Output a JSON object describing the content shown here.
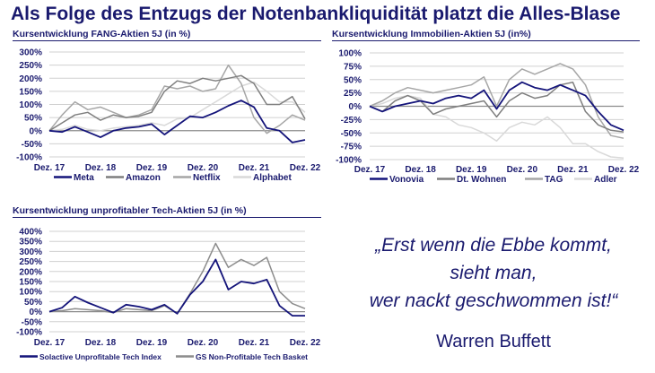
{
  "title": "Als Folge des Entzugs der Notenbankliquidität platzt die Alles-Blase",
  "quote": {
    "lines": [
      "„Erst wenn die Ebbe kommt,",
      "sieht man,",
      "wer nackt geschwommen ist!“"
    ],
    "author": "Warren Buffett"
  },
  "chart_data": [
    {
      "type": "line",
      "title": "Kursentwicklung FANG-Aktien 5J (in %)",
      "x": [
        0,
        0.25,
        0.5,
        0.75,
        1,
        1.25,
        1.5,
        1.75,
        2,
        2.25,
        2.5,
        2.75,
        3,
        3.25,
        3.5,
        3.75,
        4,
        4.25,
        4.5,
        4.75,
        5
      ],
      "xticks": [
        "Dez. 17",
        "Dez. 18",
        "Dez. 19",
        "Dez. 20",
        "Dez. 21",
        "Dez. 22"
      ],
      "yticks": [
        "300%",
        "250%",
        "200%",
        "150%",
        "100%",
        "50%",
        "0%",
        "-50%",
        "-100%"
      ],
      "ylim": [
        -100,
        300
      ],
      "grid": true,
      "legend": "bottom",
      "series": [
        {
          "name": "Meta",
          "color": "#14147a",
          "values": [
            0,
            -5,
            15,
            -5,
            -25,
            0,
            10,
            15,
            25,
            -15,
            20,
            55,
            50,
            70,
            95,
            115,
            90,
            10,
            0,
            -45,
            -35
          ]
        },
        {
          "name": "Amazon",
          "color": "#7f7f7f",
          "values": [
            0,
            30,
            60,
            70,
            40,
            60,
            50,
            55,
            70,
            150,
            190,
            180,
            200,
            190,
            200,
            210,
            180,
            100,
            100,
            130,
            45
          ]
        },
        {
          "name": "Netflix",
          "color": "#a6a6a6",
          "values": [
            0,
            60,
            110,
            80,
            90,
            70,
            50,
            60,
            80,
            170,
            160,
            170,
            150,
            160,
            250,
            180,
            50,
            -10,
            20,
            60,
            40
          ]
        },
        {
          "name": "Alphabet",
          "color": "#d9d9d9",
          "values": [
            0,
            5,
            20,
            5,
            0,
            10,
            15,
            20,
            30,
            20,
            45,
            50,
            80,
            110,
            140,
            170,
            185,
            150,
            110,
            110,
            70
          ]
        }
      ]
    },
    {
      "type": "line",
      "title": "Kursentwicklung Immobilien-Aktien 5J (in%)",
      "x": [
        0,
        0.25,
        0.5,
        0.75,
        1,
        1.25,
        1.5,
        1.75,
        2,
        2.25,
        2.5,
        2.75,
        3,
        3.25,
        3.5,
        3.75,
        4,
        4.25,
        4.5,
        4.75,
        5
      ],
      "xticks": [
        "Dez. 17",
        "Dez. 18",
        "Dez. 19",
        "Dez. 20",
        "Dez. 21",
        "Dez. 22"
      ],
      "yticks": [
        "100%",
        "75%",
        "50%",
        "25%",
        "0%",
        "-25%",
        "-50%",
        "-75%",
        "-100%"
      ],
      "ylim": [
        -100,
        100
      ],
      "grid": true,
      "legend": "bottom",
      "series": [
        {
          "name": "Vonovia",
          "color": "#14147a",
          "values": [
            0,
            -10,
            0,
            5,
            10,
            5,
            15,
            20,
            15,
            30,
            -5,
            30,
            45,
            35,
            30,
            40,
            30,
            20,
            -10,
            -35,
            -45
          ]
        },
        {
          "name": "Dt. Wohnen",
          "color": "#7f7f7f",
          "values": [
            0,
            -10,
            10,
            20,
            10,
            -15,
            -5,
            0,
            5,
            10,
            -20,
            10,
            25,
            15,
            20,
            40,
            45,
            -10,
            -35,
            -45,
            -48
          ]
        },
        {
          "name": "TAG",
          "color": "#a6a6a6",
          "values": [
            0,
            10,
            25,
            35,
            30,
            25,
            30,
            35,
            40,
            55,
            0,
            50,
            70,
            60,
            70,
            80,
            70,
            40,
            -20,
            -55,
            -60
          ]
        },
        {
          "name": "Adler",
          "color": "#d9d9d9",
          "values": [
            0,
            5,
            15,
            20,
            15,
            -15,
            -20,
            -35,
            -40,
            -50,
            -65,
            -40,
            -30,
            -35,
            -20,
            -40,
            -70,
            -70,
            -85,
            -95,
            -97
          ]
        }
      ]
    },
    {
      "type": "line",
      "title": "Kursentwicklung unprofitabler Tech-Aktien 5J (in %)",
      "x": [
        0,
        0.25,
        0.5,
        0.75,
        1,
        1.25,
        1.5,
        1.75,
        2,
        2.25,
        2.5,
        2.75,
        3,
        3.25,
        3.5,
        3.75,
        4,
        4.25,
        4.5,
        4.75,
        5
      ],
      "xticks": [
        "Dez. 17",
        "Dez. 18",
        "Dez. 19",
        "Dez. 20",
        "Dez. 21",
        "Dez. 22"
      ],
      "yticks": [
        "400%",
        "350%",
        "300%",
        "250%",
        "200%",
        "150%",
        "100%",
        "50%",
        "0%",
        "-50%",
        "-100%"
      ],
      "ylim": [
        -100,
        400
      ],
      "grid": true,
      "legend": "bottom",
      "series": [
        {
          "name": "Solactive Unprofitable Tech Index",
          "color": "#14147a",
          "values": [
            0,
            20,
            75,
            45,
            20,
            -5,
            35,
            25,
            10,
            35,
            -10,
            85,
            150,
            260,
            110,
            150,
            140,
            160,
            30,
            -20,
            -20
          ]
        },
        {
          "name": "GS Non-Profitable Tech Basket",
          "color": "#8c8c8c",
          "values": [
            0,
            5,
            15,
            10,
            5,
            -5,
            15,
            10,
            5,
            30,
            -10,
            90,
            200,
            340,
            220,
            260,
            230,
            270,
            100,
            40,
            15
          ]
        }
      ]
    }
  ]
}
